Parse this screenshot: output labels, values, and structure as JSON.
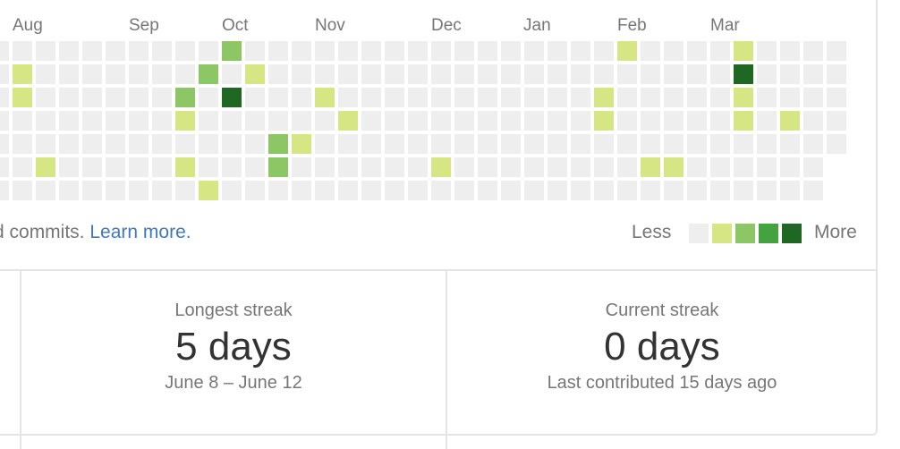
{
  "calendar": {
    "months": [
      "Aug",
      "Sep",
      "Oct",
      "Nov",
      "Dec",
      "Jan",
      "Feb",
      "Mar"
    ],
    "level_colors": [
      "#eeeeee",
      "#d6e685",
      "#8cc665",
      "#44a340",
      "#1e6823"
    ],
    "weeks": [
      [
        0,
        0,
        0,
        0,
        0,
        0,
        0
      ],
      [
        0,
        1,
        1,
        0,
        0,
        0,
        0
      ],
      [
        0,
        0,
        0,
        0,
        0,
        1,
        0
      ],
      [
        0,
        0,
        0,
        0,
        0,
        0,
        0
      ],
      [
        0,
        0,
        0,
        0,
        0,
        0,
        0
      ],
      [
        0,
        0,
        0,
        0,
        0,
        0,
        0
      ],
      [
        0,
        0,
        0,
        0,
        0,
        0,
        0
      ],
      [
        0,
        0,
        0,
        0,
        0,
        0,
        0
      ],
      [
        0,
        0,
        2,
        1,
        0,
        1,
        0
      ],
      [
        0,
        2,
        0,
        0,
        0,
        0,
        1
      ],
      [
        2,
        0,
        4,
        0,
        0,
        0,
        0
      ],
      [
        0,
        1,
        0,
        0,
        0,
        0,
        0
      ],
      [
        0,
        0,
        0,
        0,
        2,
        2,
        0
      ],
      [
        0,
        0,
        0,
        0,
        1,
        0,
        0
      ],
      [
        0,
        0,
        1,
        0,
        0,
        0,
        0
      ],
      [
        0,
        0,
        0,
        1,
        0,
        0,
        0
      ],
      [
        0,
        0,
        0,
        0,
        0,
        0,
        0
      ],
      [
        0,
        0,
        0,
        0,
        0,
        0,
        0
      ],
      [
        0,
        0,
        0,
        0,
        0,
        0,
        0
      ],
      [
        0,
        0,
        0,
        0,
        0,
        1,
        0
      ],
      [
        0,
        0,
        0,
        0,
        0,
        0,
        0
      ],
      [
        0,
        0,
        0,
        0,
        0,
        0,
        0
      ],
      [
        0,
        0,
        0,
        0,
        0,
        0,
        0
      ],
      [
        0,
        0,
        0,
        0,
        0,
        0,
        0
      ],
      [
        0,
        0,
        0,
        0,
        0,
        0,
        0
      ],
      [
        0,
        0,
        0,
        0,
        0,
        0,
        0
      ],
      [
        0,
        0,
        1,
        1,
        0,
        0,
        0
      ],
      [
        1,
        0,
        0,
        0,
        0,
        0,
        0
      ],
      [
        0,
        0,
        0,
        0,
        0,
        1,
        0
      ],
      [
        0,
        0,
        0,
        0,
        0,
        1,
        0
      ],
      [
        0,
        0,
        0,
        0,
        0,
        0,
        0
      ],
      [
        0,
        0,
        0,
        0,
        0,
        0,
        0
      ],
      [
        1,
        4,
        1,
        1,
        0,
        0,
        0
      ],
      [
        0,
        0,
        0,
        0,
        0,
        0,
        0
      ],
      [
        0,
        0,
        0,
        1,
        0,
        0,
        0
      ],
      [
        0,
        0,
        0,
        0,
        0,
        0,
        0
      ],
      [
        0,
        0,
        0,
        0,
        0
      ]
    ]
  },
  "footer": {
    "caption_text": "d commits. ",
    "learn_more": "Learn more.",
    "legend_less": "Less",
    "legend_more": "More"
  },
  "stats": {
    "longest": {
      "label": "Longest streak",
      "value": "5 days",
      "range": "June 8 – June 12"
    },
    "current": {
      "label": "Current streak",
      "value": "0 days",
      "note": "Last contributed 15 days ago"
    }
  }
}
